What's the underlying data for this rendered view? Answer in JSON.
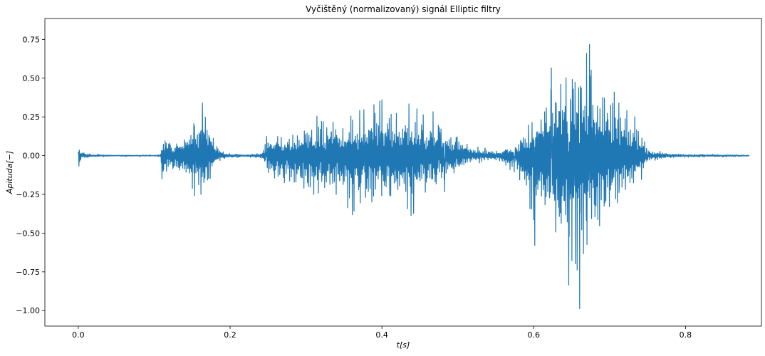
{
  "chart_data": {
    "type": "line",
    "title": "Vyčištěný (normalizovaný) signál Elliptic filtry",
    "xlabel": "t[s]",
    "ylabel": "Apituda[−]",
    "xlim": [
      -0.044,
      0.9
    ],
    "ylim": [
      -1.1,
      0.885
    ],
    "x_ticks": [
      0.0,
      0.2,
      0.4,
      0.6,
      0.8
    ],
    "x_tick_labels": [
      "0.0",
      "0.2",
      "0.4",
      "0.6",
      "0.8"
    ],
    "y_ticks": [
      0.75,
      0.5,
      0.25,
      0.0,
      -0.25,
      -0.5,
      -0.75,
      -1.0
    ],
    "y_tick_labels": [
      "0.75",
      "0.50",
      "0.25",
      "0.00",
      "−0.25",
      "−0.50",
      "−0.75",
      "−1.00"
    ],
    "grid": false,
    "duration_s": 0.884,
    "line_color": "#1f77b4",
    "envelope": {
      "t": [
        0.0,
        0.002,
        0.004,
        0.01,
        0.02,
        0.05,
        0.1,
        0.108,
        0.11,
        0.113,
        0.12,
        0.13,
        0.14,
        0.15,
        0.16,
        0.17,
        0.175,
        0.18,
        0.19,
        0.2,
        0.22,
        0.24,
        0.245,
        0.25,
        0.26,
        0.28,
        0.3,
        0.32,
        0.34,
        0.36,
        0.38,
        0.4,
        0.42,
        0.44,
        0.46,
        0.48,
        0.5,
        0.52,
        0.55,
        0.58,
        0.6,
        0.61,
        0.62,
        0.63,
        0.64,
        0.65,
        0.66,
        0.67,
        0.68,
        0.69,
        0.7,
        0.72,
        0.74,
        0.75,
        0.76,
        0.78,
        0.8,
        0.82,
        0.84,
        0.884
      ],
      "upper": [
        0.1,
        0.05,
        0.03,
        0.02,
        0.01,
        0.005,
        0.005,
        0.01,
        0.15,
        0.19,
        0.12,
        0.1,
        0.2,
        0.3,
        0.33,
        0.36,
        0.3,
        0.1,
        0.03,
        0.02,
        0.01,
        0.02,
        0.07,
        0.16,
        0.19,
        0.15,
        0.25,
        0.3,
        0.3,
        0.28,
        0.3,
        0.36,
        0.42,
        0.35,
        0.32,
        0.28,
        0.15,
        0.06,
        0.04,
        0.1,
        0.35,
        0.45,
        0.55,
        0.6,
        0.68,
        0.72,
        0.8,
        0.78,
        0.6,
        0.55,
        0.5,
        0.35,
        0.2,
        0.05,
        0.03,
        0.02,
        0.01,
        0.01,
        0.01,
        0.005
      ],
      "lower": [
        -0.08,
        -0.05,
        -0.03,
        -0.02,
        -0.01,
        -0.005,
        -0.005,
        -0.01,
        -0.17,
        -0.15,
        -0.12,
        -0.15,
        -0.2,
        -0.26,
        -0.25,
        -0.25,
        -0.2,
        -0.08,
        -0.03,
        -0.02,
        -0.01,
        -0.02,
        -0.08,
        -0.15,
        -0.2,
        -0.23,
        -0.28,
        -0.3,
        -0.32,
        -0.38,
        -0.4,
        -0.35,
        -0.46,
        -0.38,
        -0.3,
        -0.25,
        -0.12,
        -0.05,
        -0.04,
        -0.12,
        -0.6,
        -0.45,
        -0.72,
        -0.83,
        -0.86,
        -0.82,
        -1.0,
        -0.75,
        -0.6,
        -0.55,
        -0.45,
        -0.35,
        -0.2,
        -0.05,
        -0.03,
        -0.02,
        -0.01,
        -0.01,
        -0.01,
        -0.005
      ]
    }
  }
}
